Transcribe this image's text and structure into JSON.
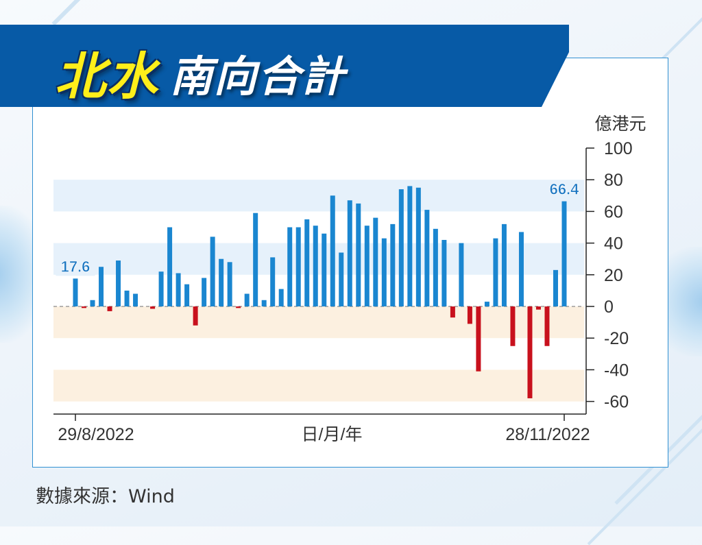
{
  "header": {
    "title_highlight": "北水",
    "title_rest": "南向合計"
  },
  "source": "數據來源：Wind",
  "colors": {
    "positive": "#1a86d0",
    "negative": "#c8111d",
    "banner": "#075aa6",
    "band_blue": "#e6f1fb",
    "band_peach": "#fcf0e0",
    "label_fill": "#e6f1fb"
  },
  "chart_data": {
    "type": "bar",
    "title": "",
    "xlabel": "日/月/年",
    "ylabel": "億港元",
    "ylim": [
      -60,
      100
    ],
    "yticks": [
      -60,
      -40,
      -20,
      0,
      20,
      40,
      60,
      80,
      100
    ],
    "x_tick_labels": [
      "29/8/2022",
      "28/11/2022"
    ],
    "axis_position": "right",
    "values": [
      17.6,
      -1,
      4,
      25,
      -3,
      29,
      10,
      8,
      0,
      -1.5,
      22,
      50,
      21,
      14,
      -12,
      18,
      44,
      30,
      28,
      -1,
      8,
      59,
      4,
      31,
      11,
      50,
      50,
      55,
      51,
      46,
      70,
      34,
      67,
      65,
      51,
      56,
      43,
      52,
      74,
      76,
      75,
      61,
      49,
      42,
      -7,
      40,
      -11,
      -41,
      3,
      43,
      52,
      -25,
      47,
      -58,
      -2,
      -25,
      23,
      66.4
    ],
    "annotations": [
      {
        "index": 0,
        "label": "17.6"
      },
      {
        "index": 57,
        "label": "66.4"
      }
    ]
  }
}
